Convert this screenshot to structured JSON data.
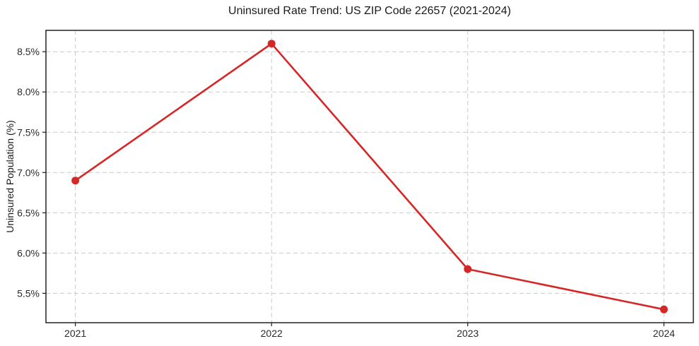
{
  "chart_data": {
    "type": "line",
    "title": "Uninsured Rate Trend: US ZIP Code 22657 (2021-2024)",
    "ylabel": "Uninsured Population (%)",
    "x": [
      2021,
      2022,
      2023,
      2024
    ],
    "values": [
      6.9,
      8.6,
      5.8,
      5.3
    ],
    "xticks": [
      2021,
      2022,
      2023,
      2024
    ],
    "xtick_labels": [
      "2021",
      "2022",
      "2023",
      "2024"
    ],
    "yticks": [
      5.5,
      6.0,
      6.5,
      7.0,
      7.5,
      8.0,
      8.5
    ],
    "ytick_labels": [
      "5.5%",
      "6.0%",
      "6.5%",
      "7.0%",
      "7.5%",
      "8.0%",
      "8.5%"
    ],
    "xlim": [
      2020.85,
      2024.15
    ],
    "ylim": [
      5.135,
      8.765
    ],
    "grid": true,
    "legend": false,
    "line_color": "#d62728",
    "marker": "circle",
    "marker_radius": 5.5
  }
}
